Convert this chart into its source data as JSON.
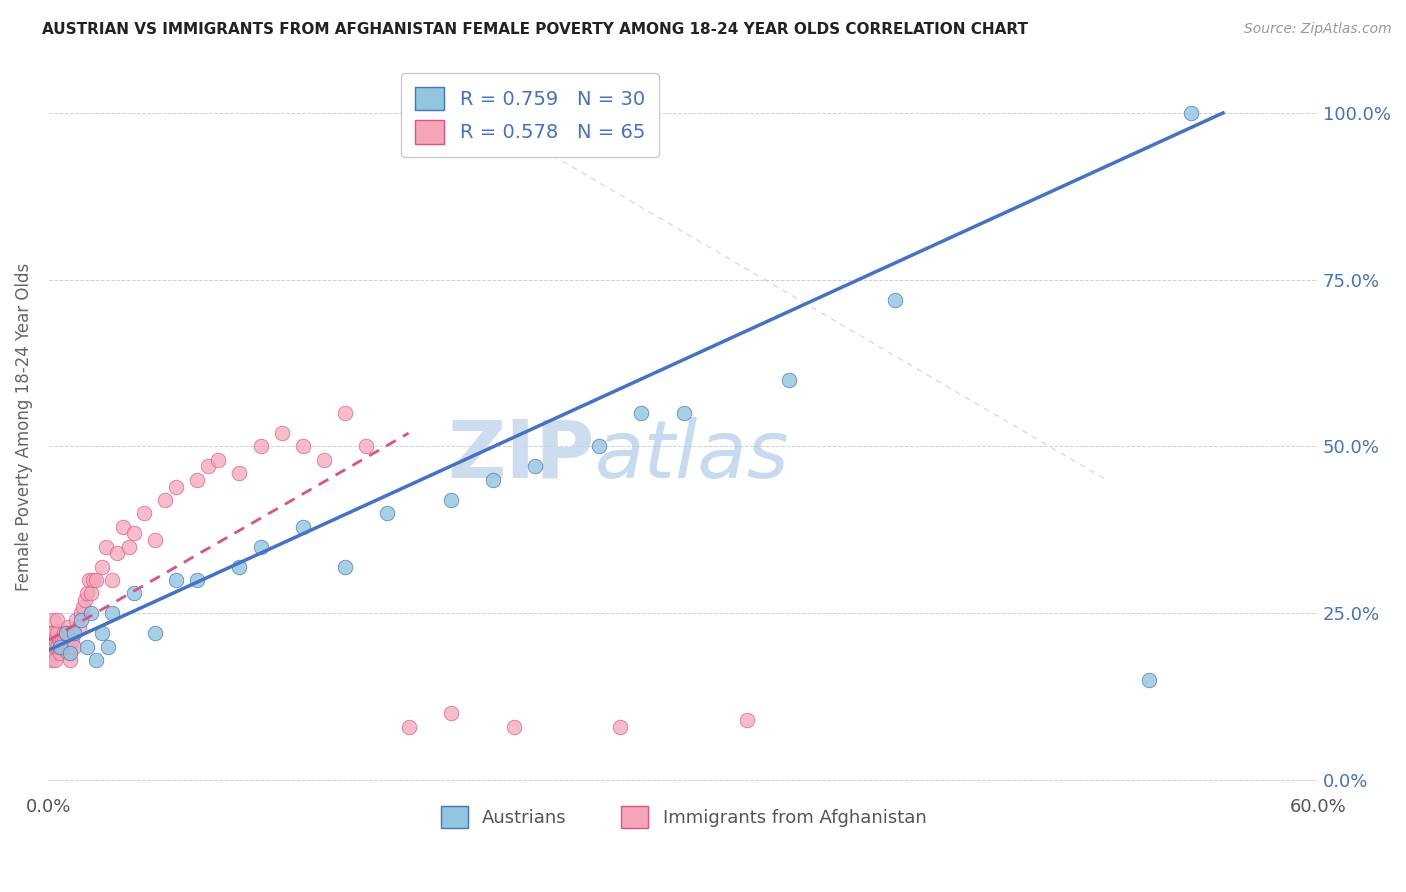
{
  "title": "AUSTRIAN VS IMMIGRANTS FROM AFGHANISTAN FEMALE POVERTY AMONG 18-24 YEAR OLDS CORRELATION CHART",
  "source": "Source: ZipAtlas.com",
  "ylabel": "Female Poverty Among 18-24 Year Olds",
  "xlabel_austrians": "Austrians",
  "xlabel_afghanistan": "Immigrants from Afghanistan",
  "xmin": 0.0,
  "xmax": 0.6,
  "ymin": -0.02,
  "ymax": 1.08,
  "ytick_vals": [
    0.0,
    0.25,
    0.5,
    0.75,
    1.0
  ],
  "ytick_labels": [
    "0.0%",
    "25.0%",
    "50.0%",
    "75.0%",
    "100.0%"
  ],
  "R_austrians": 0.759,
  "N_austrians": 30,
  "R_afghanistan": 0.578,
  "N_afghanistan": 65,
  "color_austrians": "#92c5de",
  "color_afghanistan": "#f4a6b8",
  "line_color_austrians": "#4472c4",
  "line_color_afghanistan": "#e05080",
  "watermark_zip": "ZIP",
  "watermark_atlas": "atlas",
  "background_color": "#ffffff",
  "austrians_x": [
    0.005,
    0.008,
    0.01,
    0.012,
    0.015,
    0.018,
    0.02,
    0.022,
    0.025,
    0.028,
    0.03,
    0.04,
    0.05,
    0.06,
    0.07,
    0.09,
    0.1,
    0.12,
    0.14,
    0.16,
    0.19,
    0.21,
    0.23,
    0.26,
    0.28,
    0.3,
    0.35,
    0.4,
    0.52,
    0.54
  ],
  "austrians_y": [
    0.2,
    0.22,
    0.19,
    0.22,
    0.24,
    0.2,
    0.25,
    0.18,
    0.22,
    0.2,
    0.25,
    0.28,
    0.22,
    0.3,
    0.3,
    0.32,
    0.35,
    0.38,
    0.32,
    0.4,
    0.42,
    0.45,
    0.47,
    0.5,
    0.55,
    0.55,
    0.6,
    0.72,
    0.15,
    1.0
  ],
  "afghanistan_x": [
    0.001,
    0.001,
    0.001,
    0.002,
    0.002,
    0.002,
    0.003,
    0.003,
    0.003,
    0.004,
    0.004,
    0.004,
    0.005,
    0.005,
    0.005,
    0.006,
    0.006,
    0.007,
    0.007,
    0.008,
    0.008,
    0.009,
    0.009,
    0.01,
    0.01,
    0.01,
    0.011,
    0.012,
    0.012,
    0.013,
    0.014,
    0.015,
    0.016,
    0.017,
    0.018,
    0.019,
    0.02,
    0.021,
    0.022,
    0.025,
    0.027,
    0.03,
    0.032,
    0.035,
    0.038,
    0.04,
    0.045,
    0.05,
    0.055,
    0.06,
    0.07,
    0.075,
    0.08,
    0.09,
    0.1,
    0.11,
    0.12,
    0.13,
    0.14,
    0.15,
    0.17,
    0.19,
    0.22,
    0.27,
    0.33
  ],
  "afghanistan_y": [
    0.2,
    0.22,
    0.18,
    0.24,
    0.19,
    0.22,
    0.21,
    0.2,
    0.18,
    0.22,
    0.2,
    0.24,
    0.19,
    0.21,
    0.2,
    0.21,
    0.2,
    0.22,
    0.21,
    0.2,
    0.22,
    0.19,
    0.23,
    0.2,
    0.22,
    0.18,
    0.21,
    0.22,
    0.2,
    0.24,
    0.23,
    0.25,
    0.26,
    0.27,
    0.28,
    0.3,
    0.28,
    0.3,
    0.3,
    0.32,
    0.35,
    0.3,
    0.34,
    0.38,
    0.35,
    0.37,
    0.4,
    0.36,
    0.42,
    0.44,
    0.45,
    0.47,
    0.48,
    0.46,
    0.5,
    0.52,
    0.5,
    0.48,
    0.55,
    0.5,
    0.08,
    0.1,
    0.08,
    0.08,
    0.09
  ],
  "blue_line_x0": 0.0,
  "blue_line_y0": 0.195,
  "blue_line_x1": 0.555,
  "blue_line_y1": 1.0,
  "pink_line_x0": 0.0,
  "pink_line_y0": 0.21,
  "pink_line_x1": 0.17,
  "pink_line_y1": 0.52
}
